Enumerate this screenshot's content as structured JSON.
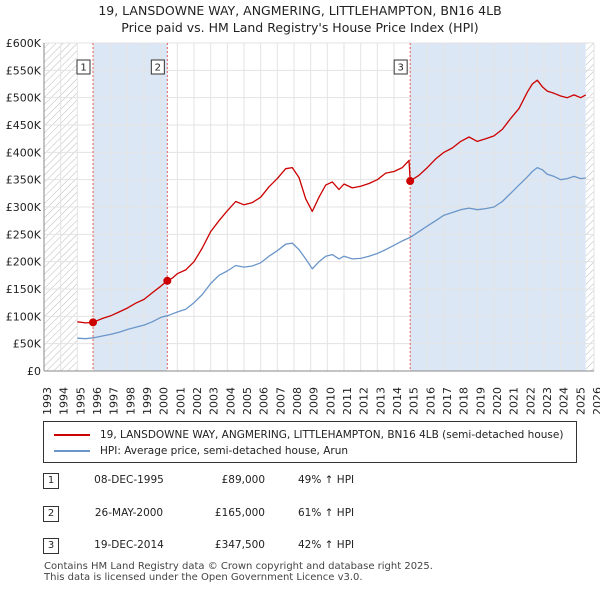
{
  "title": {
    "line1": "19, LANSDOWNE WAY, ANGMERING, LITTLEHAMPTON, BN16 4LB",
    "line2": "Price paid vs. HM Land Registry's House Price Index (HPI)"
  },
  "colors": {
    "price_line": "#cc0000",
    "hpi_line": "#6b96c9",
    "shade": "#dce7f5",
    "hatch": "#bbbbbb",
    "marker_line": "#e06060"
  },
  "chart_data": {
    "type": "line",
    "xlim": [
      1993,
      2026
    ],
    "ylim": [
      0,
      600000
    ],
    "x_ticks": [
      "1993",
      "1994",
      "1995",
      "1996",
      "1997",
      "1998",
      "1999",
      "2000",
      "2001",
      "2002",
      "2003",
      "2004",
      "2005",
      "2006",
      "2007",
      "2008",
      "2009",
      "2010",
      "2011",
      "2012",
      "2013",
      "2014",
      "2015",
      "2016",
      "2017",
      "2018",
      "2019",
      "2020",
      "2021",
      "2022",
      "2023",
      "2024",
      "2025",
      "2026"
    ],
    "y_ticks": [
      {
        "value": 0,
        "label": "£0"
      },
      {
        "value": 50000,
        "label": "£50K"
      },
      {
        "value": 100000,
        "label": "£100K"
      },
      {
        "value": 150000,
        "label": "£150K"
      },
      {
        "value": 200000,
        "label": "£200K"
      },
      {
        "value": 250000,
        "label": "£250K"
      },
      {
        "value": 300000,
        "label": "£300K"
      },
      {
        "value": 350000,
        "label": "£350K"
      },
      {
        "value": 400000,
        "label": "£400K"
      },
      {
        "value": 450000,
        "label": "£450K"
      },
      {
        "value": 500000,
        "label": "£500K"
      },
      {
        "value": 550000,
        "label": "£550K"
      },
      {
        "value": 600000,
        "label": "£600K"
      }
    ],
    "data_start": 1995.0,
    "data_end": 2025.5,
    "shaded_spans": [
      [
        1995.94,
        2000.4
      ],
      [
        2014.97,
        2025.5
      ]
    ],
    "grid": true,
    "series": [
      {
        "name": "19, LANSDOWNE WAY, ANGMERING, LITTLEHAMPTON, BN16 4LB (semi-detached house)",
        "x": [
          1995.0,
          1995.5,
          1995.94,
          1996.5,
          1997.0,
          1997.5,
          1998.0,
          1998.5,
          1999.0,
          1999.5,
          2000.0,
          2000.4,
          2000.7,
          2001.0,
          2001.5,
          2002.0,
          2002.5,
          2003.0,
          2003.5,
          2004.0,
          2004.5,
          2005.0,
          2005.5,
          2006.0,
          2006.5,
          2007.0,
          2007.5,
          2007.9,
          2008.3,
          2008.7,
          2009.1,
          2009.5,
          2009.9,
          2010.3,
          2010.7,
          2011.0,
          2011.5,
          2012.0,
          2012.5,
          2013.0,
          2013.5,
          2014.0,
          2014.5,
          2014.9,
          2014.97,
          2015.5,
          2016.0,
          2016.5,
          2017.0,
          2017.5,
          2018.0,
          2018.5,
          2019.0,
          2019.5,
          2020.0,
          2020.5,
          2021.0,
          2021.5,
          2022.0,
          2022.3,
          2022.6,
          2022.9,
          2023.2,
          2023.6,
          2024.0,
          2024.4,
          2024.8,
          2025.2,
          2025.5
        ],
        "y": [
          90000,
          88000,
          89000,
          96000,
          101000,
          108000,
          115000,
          124000,
          131000,
          143000,
          155000,
          165000,
          170000,
          178000,
          185000,
          200000,
          225000,
          255000,
          275000,
          293000,
          310000,
          304000,
          308000,
          318000,
          337000,
          352000,
          370000,
          372000,
          354000,
          315000,
          292000,
          318000,
          340000,
          346000,
          332000,
          342000,
          335000,
          338000,
          343000,
          350000,
          362000,
          365000,
          372000,
          385000,
          347500,
          358000,
          372000,
          388000,
          400000,
          408000,
          420000,
          428000,
          420000,
          425000,
          430000,
          442000,
          462000,
          480000,
          510000,
          525000,
          532000,
          520000,
          512000,
          508000,
          503000,
          500000,
          505000,
          500000,
          505000
        ],
        "color": "#cc0000"
      },
      {
        "name": "HPI: Average price, semi-detached house, Arun",
        "x": [
          1995.0,
          1995.5,
          1996.0,
          1996.5,
          1997.0,
          1997.5,
          1998.0,
          1998.5,
          1999.0,
          1999.5,
          2000.0,
          2000.5,
          2001.0,
          2001.5,
          2002.0,
          2002.5,
          2003.0,
          2003.5,
          2004.0,
          2004.5,
          2005.0,
          2005.5,
          2006.0,
          2006.5,
          2007.0,
          2007.5,
          2007.9,
          2008.3,
          2008.7,
          2009.1,
          2009.5,
          2009.9,
          2010.3,
          2010.7,
          2011.0,
          2011.5,
          2012.0,
          2012.5,
          2013.0,
          2013.5,
          2014.0,
          2014.5,
          2015.0,
          2015.5,
          2016.0,
          2016.5,
          2017.0,
          2017.5,
          2018.0,
          2018.5,
          2019.0,
          2019.5,
          2020.0,
          2020.5,
          2021.0,
          2021.5,
          2022.0,
          2022.3,
          2022.6,
          2022.9,
          2023.2,
          2023.6,
          2024.0,
          2024.4,
          2024.8,
          2025.2,
          2025.5
        ],
        "y": [
          60000,
          59000,
          61000,
          64000,
          67000,
          71000,
          76000,
          80000,
          84000,
          90000,
          98000,
          102000,
          108000,
          113000,
          125000,
          140000,
          160000,
          175000,
          183000,
          193000,
          190000,
          192000,
          198000,
          210000,
          220000,
          232000,
          234000,
          222000,
          205000,
          187000,
          200000,
          210000,
          213000,
          205000,
          210000,
          205000,
          206000,
          210000,
          215000,
          222000,
          230000,
          238000,
          245000,
          255000,
          265000,
          275000,
          285000,
          290000,
          295000,
          298000,
          295000,
          297000,
          300000,
          310000,
          325000,
          340000,
          355000,
          365000,
          372000,
          368000,
          360000,
          356000,
          350000,
          352000,
          356000,
          352000,
          353000
        ],
        "color": "#6b96c9"
      }
    ],
    "sales": [
      {
        "label": "1",
        "x": 1995.94,
        "y": 89000
      },
      {
        "label": "2",
        "x": 2000.4,
        "y": 165000
      },
      {
        "label": "3",
        "x": 2014.97,
        "y": 347500
      }
    ]
  },
  "legend": {
    "items": [
      {
        "label": "19, LANSDOWNE WAY, ANGMERING, LITTLEHAMPTON, BN16 4LB (semi-detached house)",
        "color": "#cc0000"
      },
      {
        "label": "HPI: Average price, semi-detached house, Arun",
        "color": "#6b96c9"
      }
    ]
  },
  "sales_table": [
    {
      "num": "1",
      "date": "08-DEC-1995",
      "price": "£89,000",
      "hpi": "49% ↑ HPI"
    },
    {
      "num": "2",
      "date": "26-MAY-2000",
      "price": "£165,000",
      "hpi": "61% ↑ HPI"
    },
    {
      "num": "3",
      "date": "19-DEC-2014",
      "price": "£347,500",
      "hpi": "42% ↑ HPI"
    }
  ],
  "footer": {
    "line1": "Contains HM Land Registry data © Crown copyright and database right 2025.",
    "line2": "This data is licensed under the Open Government Licence v3.0."
  }
}
